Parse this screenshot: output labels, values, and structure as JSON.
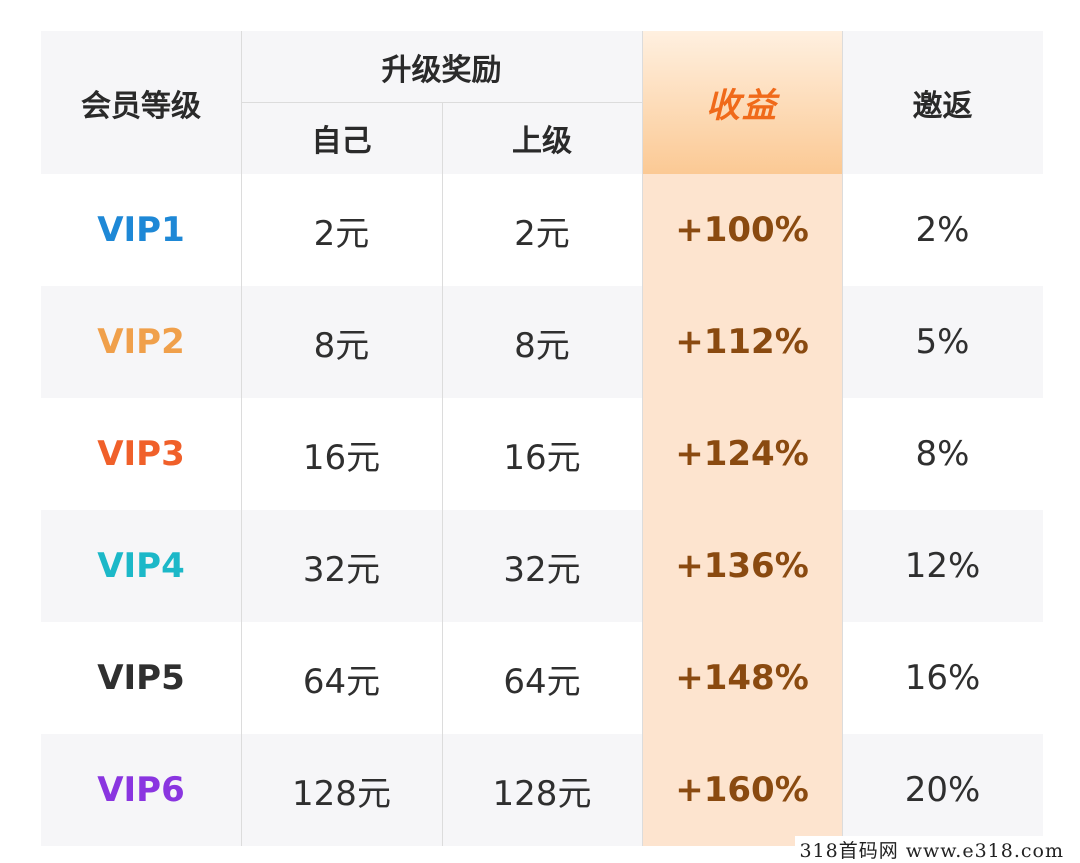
{
  "header": {
    "level": "会员等级",
    "upgrade_reward": "升级奖励",
    "self": "自己",
    "superior": "上级",
    "earnings": "收益",
    "invite_rebate": "邀返"
  },
  "rows": [
    {
      "level": "VIP1",
      "self": "2元",
      "superior": "2元",
      "earnings": "+100%",
      "rebate": "2%"
    },
    {
      "level": "VIP2",
      "self": "8元",
      "superior": "8元",
      "earnings": "+112%",
      "rebate": "5%"
    },
    {
      "level": "VIP3",
      "self": "16元",
      "superior": "16元",
      "earnings": "+124%",
      "rebate": "8%"
    },
    {
      "level": "VIP4",
      "self": "32元",
      "superior": "32元",
      "earnings": "+136%",
      "rebate": "12%"
    },
    {
      "level": "VIP5",
      "self": "64元",
      "superior": "64元",
      "earnings": "+148%",
      "rebate": "16%"
    },
    {
      "level": "VIP6",
      "self": "128元",
      "superior": "128元",
      "earnings": "+160%",
      "rebate": "20%"
    }
  ],
  "colors": {
    "vip1": "#1e88d6",
    "vip2": "#f0a04b",
    "vip3": "#f0602a",
    "vip4": "#1cb8c8",
    "vip5": "#2f2f2f",
    "vip6": "#8a35e0",
    "earnings_header": "#f06a1a",
    "earnings_value": "#8a4a10"
  },
  "watermark": "318首码网  www.e318.com"
}
